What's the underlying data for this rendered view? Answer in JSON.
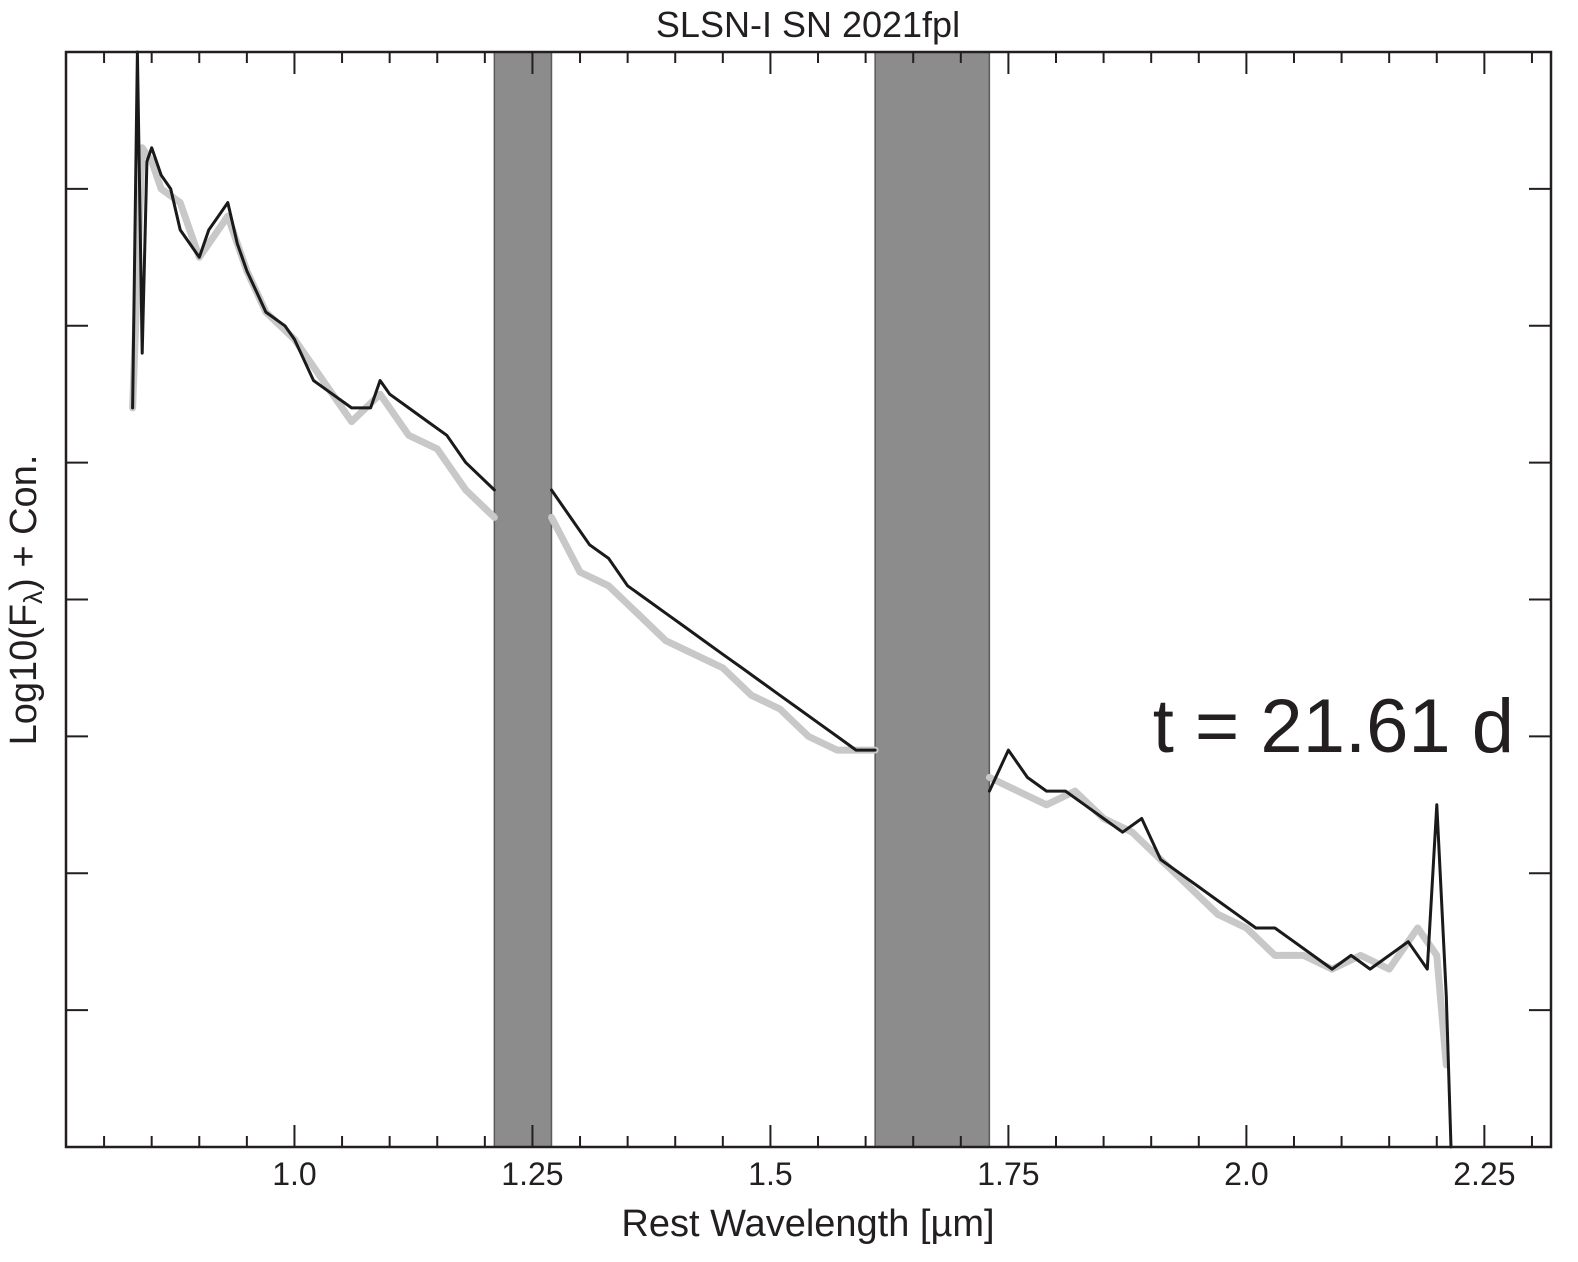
{
  "chart_data": {
    "type": "line",
    "title": "SLSN-I SN 2021fpl",
    "xlabel": "Rest Wavelength [µm]",
    "ylabel_main": "Log10(F",
    "ylabel_sub": "λ",
    "ylabel_tail": ") + Con.",
    "annotation": "t = 21.61 d",
    "xlim": [
      0.76,
      2.32
    ],
    "ylim": [
      0.0,
      8.0
    ],
    "x_ticks": [
      1.0,
      1.25,
      1.5,
      1.75,
      2.0,
      2.25
    ],
    "x_tick_labels": [
      "1.0",
      "1.25",
      "1.5",
      "1.75",
      "2.0",
      "2.25"
    ],
    "y_ticks": [
      1,
      2,
      3,
      4,
      5,
      6,
      7
    ],
    "y_tick_labels_visible": false,
    "telluric_bands": [
      [
        1.21,
        1.27
      ],
      [
        1.61,
        1.73
      ]
    ],
    "colors": {
      "smoothed": "#1a1a1a",
      "raw": "#c8c8c8",
      "band": "#8c8c8c",
      "axis": "#231f20"
    },
    "series": [
      {
        "role": "raw",
        "x": [
          0.83,
          0.84,
          0.85,
          0.86,
          0.88,
          0.9,
          0.93,
          0.95,
          0.97,
          1.0,
          1.03,
          1.06,
          1.09,
          1.12,
          1.15,
          1.18,
          1.21,
          1.27,
          1.3,
          1.33,
          1.36,
          1.39,
          1.42,
          1.45,
          1.48,
          1.51,
          1.54,
          1.57,
          1.61,
          1.73,
          1.76,
          1.79,
          1.82,
          1.85,
          1.88,
          1.91,
          1.94,
          1.97,
          2.0,
          2.03,
          2.06,
          2.09,
          2.12,
          2.15,
          2.18,
          2.2,
          2.21
        ],
        "y": [
          5.4,
          7.3,
          7.2,
          7.0,
          6.9,
          6.5,
          6.8,
          6.4,
          6.1,
          5.9,
          5.6,
          5.3,
          5.5,
          5.2,
          5.1,
          4.8,
          4.6,
          4.6,
          4.2,
          4.1,
          3.9,
          3.7,
          3.6,
          3.5,
          3.3,
          3.2,
          3.0,
          2.9,
          2.9,
          2.7,
          2.6,
          2.5,
          2.6,
          2.4,
          2.3,
          2.1,
          1.9,
          1.7,
          1.6,
          1.4,
          1.4,
          1.3,
          1.4,
          1.3,
          1.6,
          1.4,
          0.6
        ]
      },
      {
        "role": "smoothed",
        "x": [
          0.83,
          0.835,
          0.84,
          0.845,
          0.85,
          0.86,
          0.87,
          0.88,
          0.89,
          0.9,
          0.91,
          0.92,
          0.93,
          0.94,
          0.95,
          0.97,
          0.99,
          1.0,
          1.02,
          1.04,
          1.06,
          1.08,
          1.09,
          1.1,
          1.12,
          1.14,
          1.16,
          1.18,
          1.21,
          1.27,
          1.29,
          1.31,
          1.33,
          1.35,
          1.37,
          1.39,
          1.41,
          1.43,
          1.45,
          1.47,
          1.49,
          1.51,
          1.53,
          1.55,
          1.57,
          1.59,
          1.61,
          1.73,
          1.75,
          1.77,
          1.79,
          1.81,
          1.83,
          1.85,
          1.87,
          1.89,
          1.91,
          1.93,
          1.95,
          1.97,
          1.99,
          2.01,
          2.03,
          2.05,
          2.07,
          2.09,
          2.11,
          2.13,
          2.15,
          2.17,
          2.19,
          2.2,
          2.21,
          2.215
        ],
        "y": [
          5.4,
          8.0,
          5.8,
          7.2,
          7.3,
          7.1,
          7.0,
          6.7,
          6.6,
          6.5,
          6.7,
          6.8,
          6.9,
          6.6,
          6.4,
          6.1,
          6.0,
          5.9,
          5.6,
          5.5,
          5.4,
          5.4,
          5.6,
          5.5,
          5.4,
          5.3,
          5.2,
          5.0,
          4.8,
          4.8,
          4.6,
          4.4,
          4.3,
          4.1,
          4.0,
          3.9,
          3.8,
          3.7,
          3.6,
          3.5,
          3.4,
          3.3,
          3.2,
          3.1,
          3.0,
          2.9,
          2.9,
          2.6,
          2.9,
          2.7,
          2.6,
          2.6,
          2.5,
          2.4,
          2.3,
          2.4,
          2.1,
          2.0,
          1.9,
          1.8,
          1.7,
          1.6,
          1.6,
          1.5,
          1.4,
          1.3,
          1.4,
          1.3,
          1.4,
          1.5,
          1.3,
          2.5,
          1.1,
          0.0
        ]
      }
    ]
  }
}
